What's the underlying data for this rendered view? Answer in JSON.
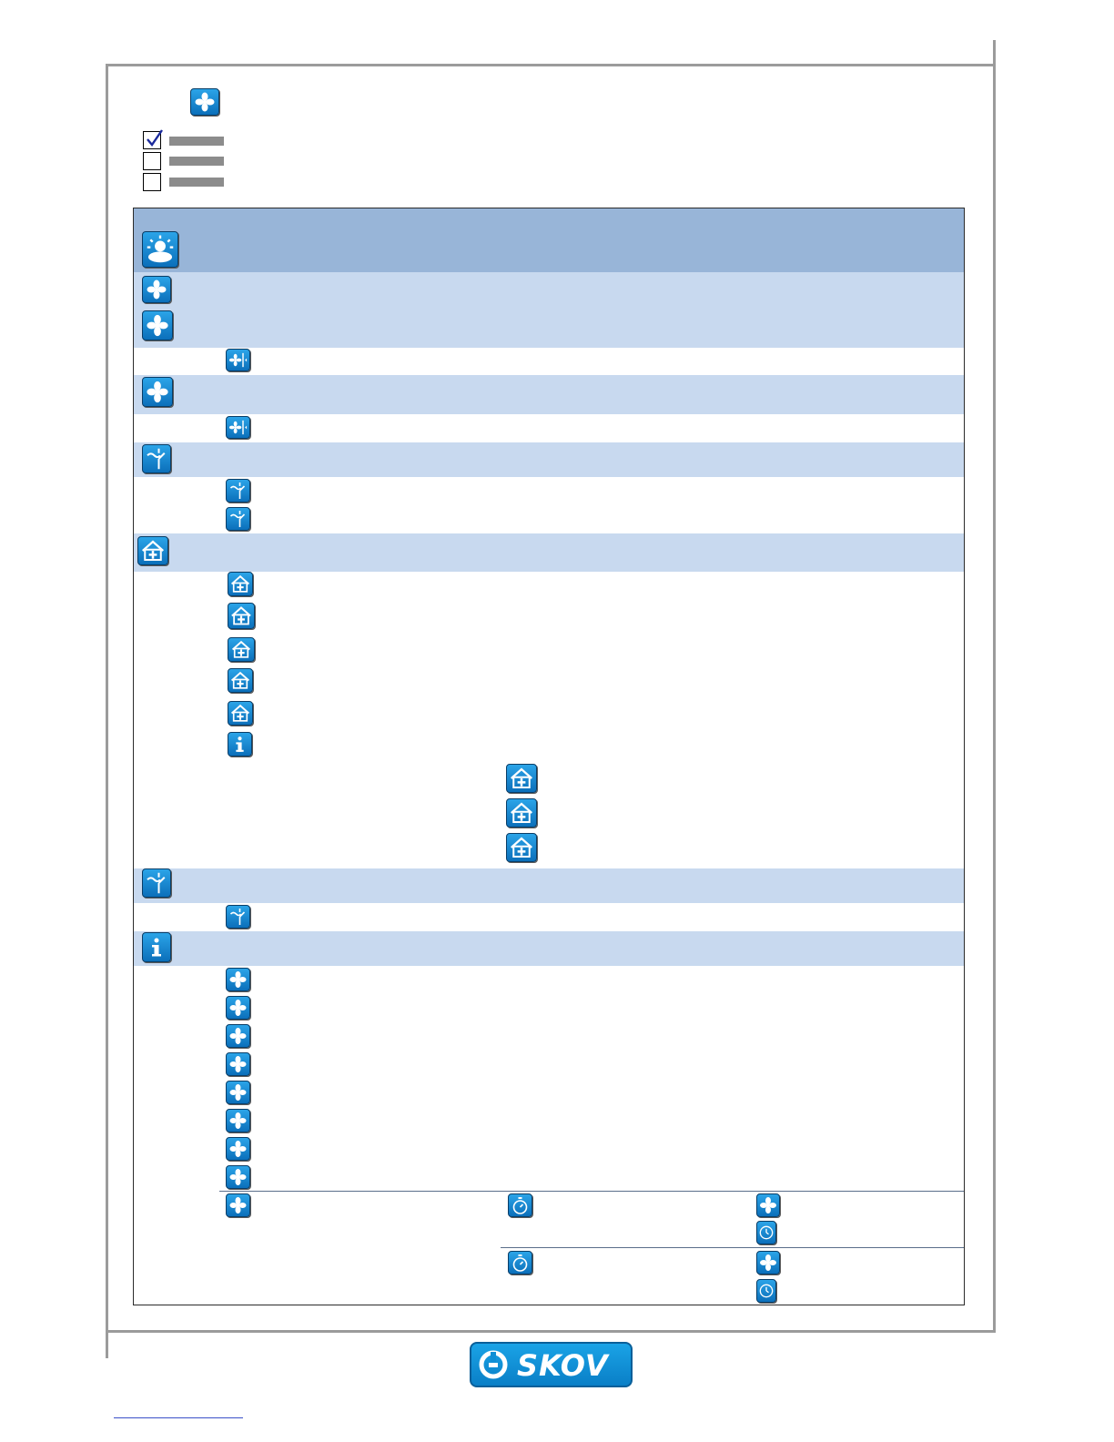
{
  "logo": {
    "text": "SKOV"
  },
  "user_levels": [
    {
      "checked": true
    },
    {
      "checked": false
    },
    {
      "checked": false
    }
  ],
  "icons": {
    "heading": "fan-icon",
    "climate": "sun-cloud-icon",
    "ventilation": "fan-icon",
    "min_ventilation": "min-fan-icon",
    "max_ventilation": "max-fan-icon",
    "setting": "fan-setting-icon",
    "switch": "switch-icon",
    "house": "house-plus-icon",
    "info": "info-icon",
    "timer": "stopwatch-icon",
    "clock": "clock-icon"
  },
  "colors": {
    "header_band": "#98b5d8",
    "light_band": "#c8d9ef",
    "icon_blue": "#1b8fd8",
    "logo_blue": "#1298dc"
  }
}
